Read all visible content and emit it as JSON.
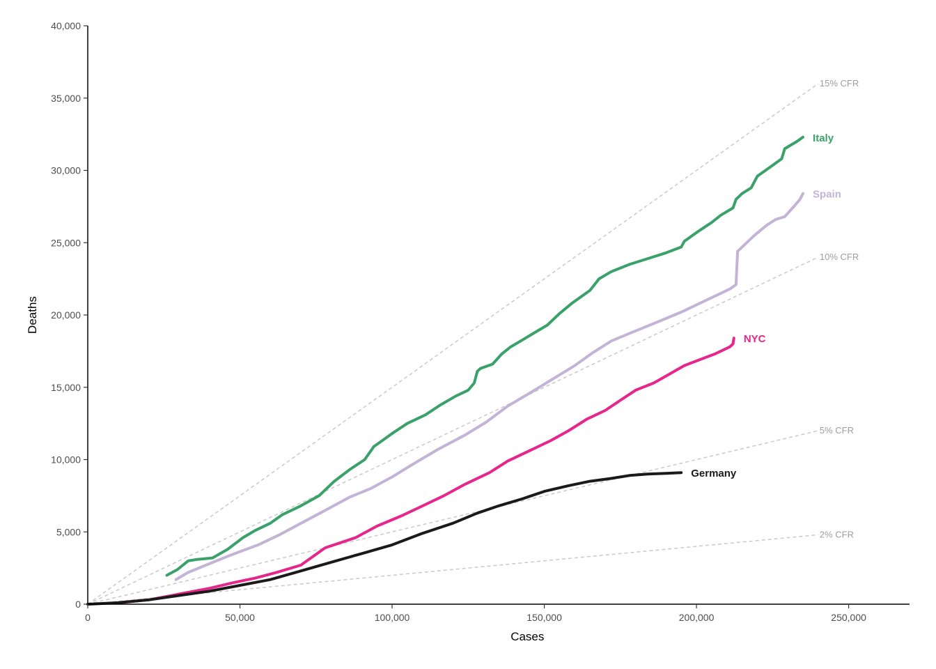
{
  "chart_data": {
    "type": "line",
    "title": "",
    "xlabel": "Cases",
    "ylabel": "Deaths",
    "xlim": [
      0,
      270000
    ],
    "ylim": [
      0,
      40000
    ],
    "x_ticks": [
      0,
      50000,
      100000,
      150000,
      200000,
      250000
    ],
    "x_tick_labels": [
      "0",
      "50,000",
      "100,000",
      "150,000",
      "200,000",
      "250,000"
    ],
    "y_ticks": [
      0,
      5000,
      10000,
      15000,
      20000,
      25000,
      30000,
      35000,
      40000
    ],
    "y_tick_labels": [
      "0",
      "5,000",
      "10,000",
      "15,000",
      "20,000",
      "25,000",
      "30,000",
      "35,000",
      "40,000"
    ],
    "grid": false,
    "legend": "none (series labelled at line ends)",
    "reference_lines": [
      {
        "label": "15% CFR",
        "rate": 0.15,
        "x_end": 240000
      },
      {
        "label": "10% CFR",
        "rate": 0.1,
        "x_end": 240000
      },
      {
        "label": "5% CFR",
        "rate": 0.05,
        "x_end": 240000
      },
      {
        "label": "2% CFR",
        "rate": 0.02,
        "x_end": 240000
      }
    ],
    "series": [
      {
        "name": "Italy",
        "color": "#3aa16b",
        "x": [
          26000,
          29500,
          33000,
          36000,
          41000,
          46000,
          51000,
          55000,
          60000,
          64000,
          70000,
          76000,
          81000,
          86000,
          91000,
          94000,
          96000,
          100000,
          105000,
          111000,
          116000,
          121000,
          125000,
          127000,
          128000,
          129000,
          133000,
          136000,
          139000,
          143000,
          147000,
          151000,
          155000,
          159000,
          165000,
          168000,
          172000,
          178000,
          184000,
          190000,
          195000,
          196000,
          200000,
          205000,
          208000,
          212000,
          213000,
          215000,
          218000,
          219000,
          220000,
          224000,
          228000,
          229000,
          233000,
          235000
        ],
        "y": [
          2000,
          2400,
          3000,
          3100,
          3200,
          3800,
          4600,
          5100,
          5600,
          6200,
          6800,
          7500,
          8500,
          9300,
          10000,
          10900,
          11200,
          11800,
          12500,
          13100,
          13800,
          14400,
          14800,
          15300,
          16100,
          16300,
          16600,
          17300,
          17800,
          18300,
          18800,
          19300,
          20100,
          20800,
          21700,
          22500,
          23000,
          23500,
          23900,
          24300,
          24700,
          25100,
          25700,
          26400,
          26900,
          27400,
          28000,
          28400,
          28800,
          29200,
          29600,
          30200,
          30800,
          31500,
          32000,
          32300
        ]
      },
      {
        "name": "Spain",
        "color": "#c3b3d6",
        "x": [
          29000,
          33000,
          40000,
          47000,
          56000,
          63000,
          71000,
          79000,
          86000,
          93000,
          100000,
          107000,
          115000,
          124000,
          131000,
          138000,
          146000,
          153000,
          160000,
          166000,
          172000,
          180000,
          187000,
          195000,
          202000,
          207000,
          211000,
          213000,
          213500,
          216000,
          219000,
          223000,
          226000,
          229000,
          232000,
          234000,
          235000
        ],
        "y": [
          1700,
          2200,
          2800,
          3400,
          4100,
          4800,
          5700,
          6600,
          7400,
          8000,
          8800,
          9700,
          10700,
          11700,
          12600,
          13700,
          14700,
          15600,
          16500,
          17400,
          18200,
          18900,
          19500,
          20200,
          20900,
          21400,
          21800,
          22100,
          24400,
          24900,
          25500,
          26200,
          26600,
          26800,
          27500,
          28000,
          28400
        ]
      },
      {
        "name": "NYC",
        "color": "#e6268a",
        "x": [
          10000,
          20000,
          30000,
          40000,
          48000,
          55000,
          62000,
          70000,
          78000,
          88000,
          95000,
          103000,
          109000,
          117000,
          124000,
          132000,
          138000,
          146000,
          152000,
          158000,
          164000,
          170000,
          175000,
          180000,
          186000,
          191000,
          196000,
          201000,
          206000,
          209000,
          211000,
          212000,
          212300
        ],
        "y": [
          100,
          300,
          700,
          1100,
          1500,
          1800,
          2200,
          2700,
          3900,
          4600,
          5400,
          6100,
          6700,
          7500,
          8300,
          9100,
          9900,
          10700,
          11300,
          12000,
          12800,
          13400,
          14100,
          14800,
          15300,
          15900,
          16500,
          16900,
          17300,
          17600,
          17800,
          18000,
          18400
        ]
      },
      {
        "name": "Germany",
        "color": "#1a1a1a",
        "x": [
          0,
          10000,
          20000,
          30000,
          40000,
          50000,
          60000,
          70000,
          80000,
          90000,
          100000,
          110000,
          120000,
          128000,
          135000,
          143000,
          150000,
          158000,
          165000,
          172000,
          178000,
          184000,
          190000,
          195000
        ],
        "y": [
          0,
          100,
          300,
          600,
          900,
          1300,
          1700,
          2300,
          2900,
          3500,
          4100,
          4900,
          5600,
          6300,
          6800,
          7300,
          7800,
          8200,
          8500,
          8700,
          8900,
          9000,
          9050,
          9100
        ]
      }
    ]
  }
}
